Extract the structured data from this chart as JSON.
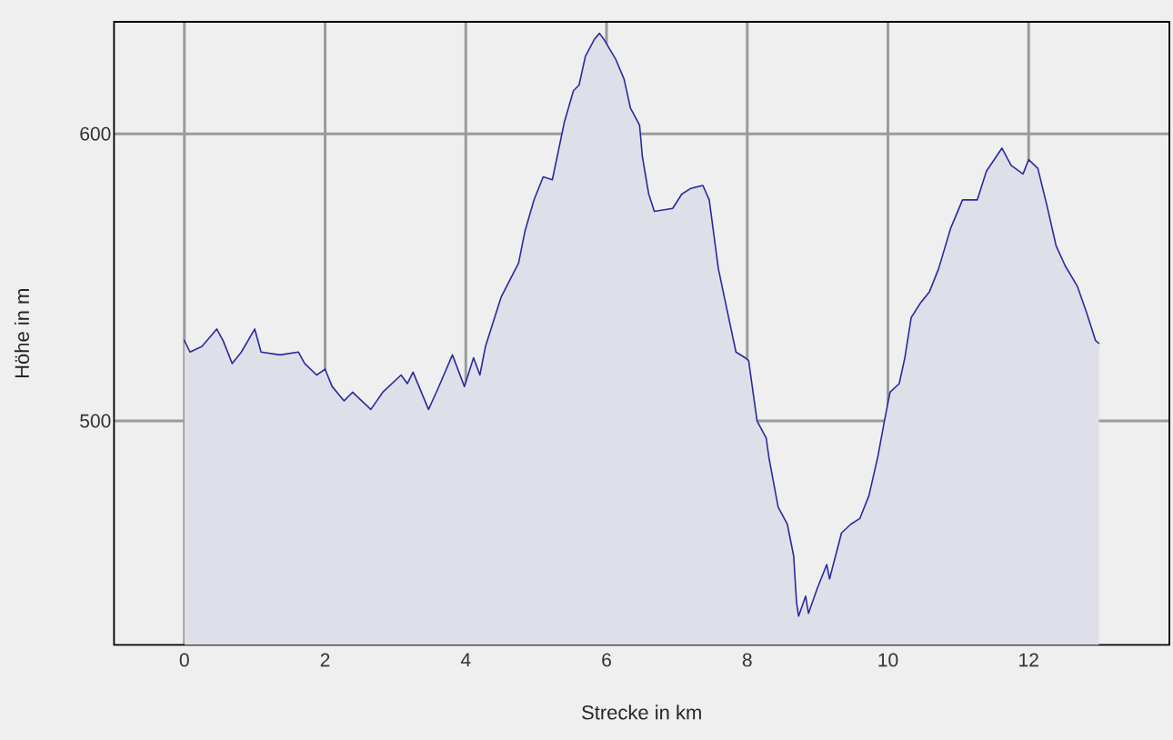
{
  "chart_data": {
    "type": "area",
    "xlabel": "Strecke in km",
    "ylabel": "Höhe in m",
    "x": [
      0,
      0.08,
      0.25,
      0.46,
      0.55,
      0.68,
      0.81,
      1.0,
      1.09,
      1.36,
      1.62,
      1.71,
      1.88,
      2.0,
      2.1,
      2.27,
      2.39,
      2.65,
      2.82,
      3.08,
      3.17,
      3.25,
      3.47,
      3.6,
      3.81,
      3.98,
      4.11,
      4.2,
      4.28,
      4.5,
      4.75,
      4.84,
      4.97,
      5.1,
      5.23,
      5.4,
      5.53,
      5.61,
      5.7,
      5.83,
      5.9,
      5.96,
      6.13,
      6.25,
      6.34,
      6.47,
      6.51,
      6.6,
      6.68,
      6.94,
      7.07,
      7.2,
      7.37,
      7.46,
      7.59,
      7.71,
      7.84,
      7.97,
      8.02,
      8.14,
      8.27,
      8.31,
      8.44,
      8.57,
      8.66,
      8.7,
      8.73,
      8.83,
      8.87,
      9.0,
      9.13,
      9.17,
      9.34,
      9.47,
      9.6,
      9.73,
      9.86,
      9.95,
      10.03,
      10.16,
      10.24,
      10.33,
      10.46,
      10.59,
      10.72,
      10.89,
      11.06,
      11.27,
      11.4,
      11.62,
      11.75,
      11.92,
      12.0,
      12.13,
      12.26,
      12.39,
      12.52,
      12.69,
      12.82,
      12.95,
      13.0
    ],
    "values": [
      528,
      524,
      526,
      532,
      528,
      520,
      524,
      532,
      524,
      523,
      524,
      520,
      516,
      518,
      512,
      507,
      510,
      504,
      510,
      516,
      513,
      517,
      504,
      511,
      523,
      512,
      522,
      516,
      526,
      543,
      555,
      566,
      577,
      585,
      584,
      604,
      615,
      617,
      627,
      633,
      635,
      633,
      626,
      619,
      609,
      603,
      592,
      579,
      573,
      574,
      579,
      581,
      582,
      577,
      553,
      539,
      524,
      522,
      521,
      500,
      494,
      487,
      470,
      464,
      453,
      437,
      432,
      439,
      433,
      442,
      450,
      445,
      461,
      464,
      466,
      474,
      488,
      500,
      510,
      513,
      522,
      536,
      541,
      545,
      553,
      567,
      577,
      577,
      587,
      595,
      589,
      586,
      591,
      588,
      575,
      561,
      554,
      547,
      538,
      528,
      527
    ],
    "color": "#2a2a9e",
    "xlim": [
      -1,
      14
    ],
    "ylim": [
      422,
      639
    ],
    "xticks": [
      0,
      2,
      4,
      6,
      8,
      10,
      12
    ],
    "yticks": [
      500,
      600
    ],
    "grid": true
  }
}
